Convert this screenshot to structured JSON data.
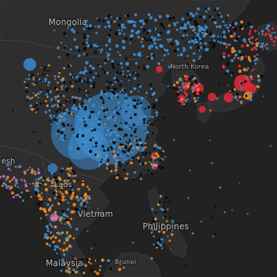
{
  "map": {
    "labels": {
      "mongolia": "Mongolia",
      "north_korea": "North Korea",
      "bangladesh_fragment": "esh",
      "laos": "Laos",
      "vietnam": "Vietnam",
      "philippines": "Philippines",
      "malaysia": "Malaysia",
      "brunei_fragment": "Brunei"
    },
    "colors": {
      "ocean": "#222222",
      "land": "#2e2e2e",
      "border": "#4a4a4a",
      "blue": "#3d8fd6",
      "orange": "#f08a24",
      "red": "#e02a36",
      "black": "#0a0a0a",
      "pink": "#d06fc8"
    }
  }
}
